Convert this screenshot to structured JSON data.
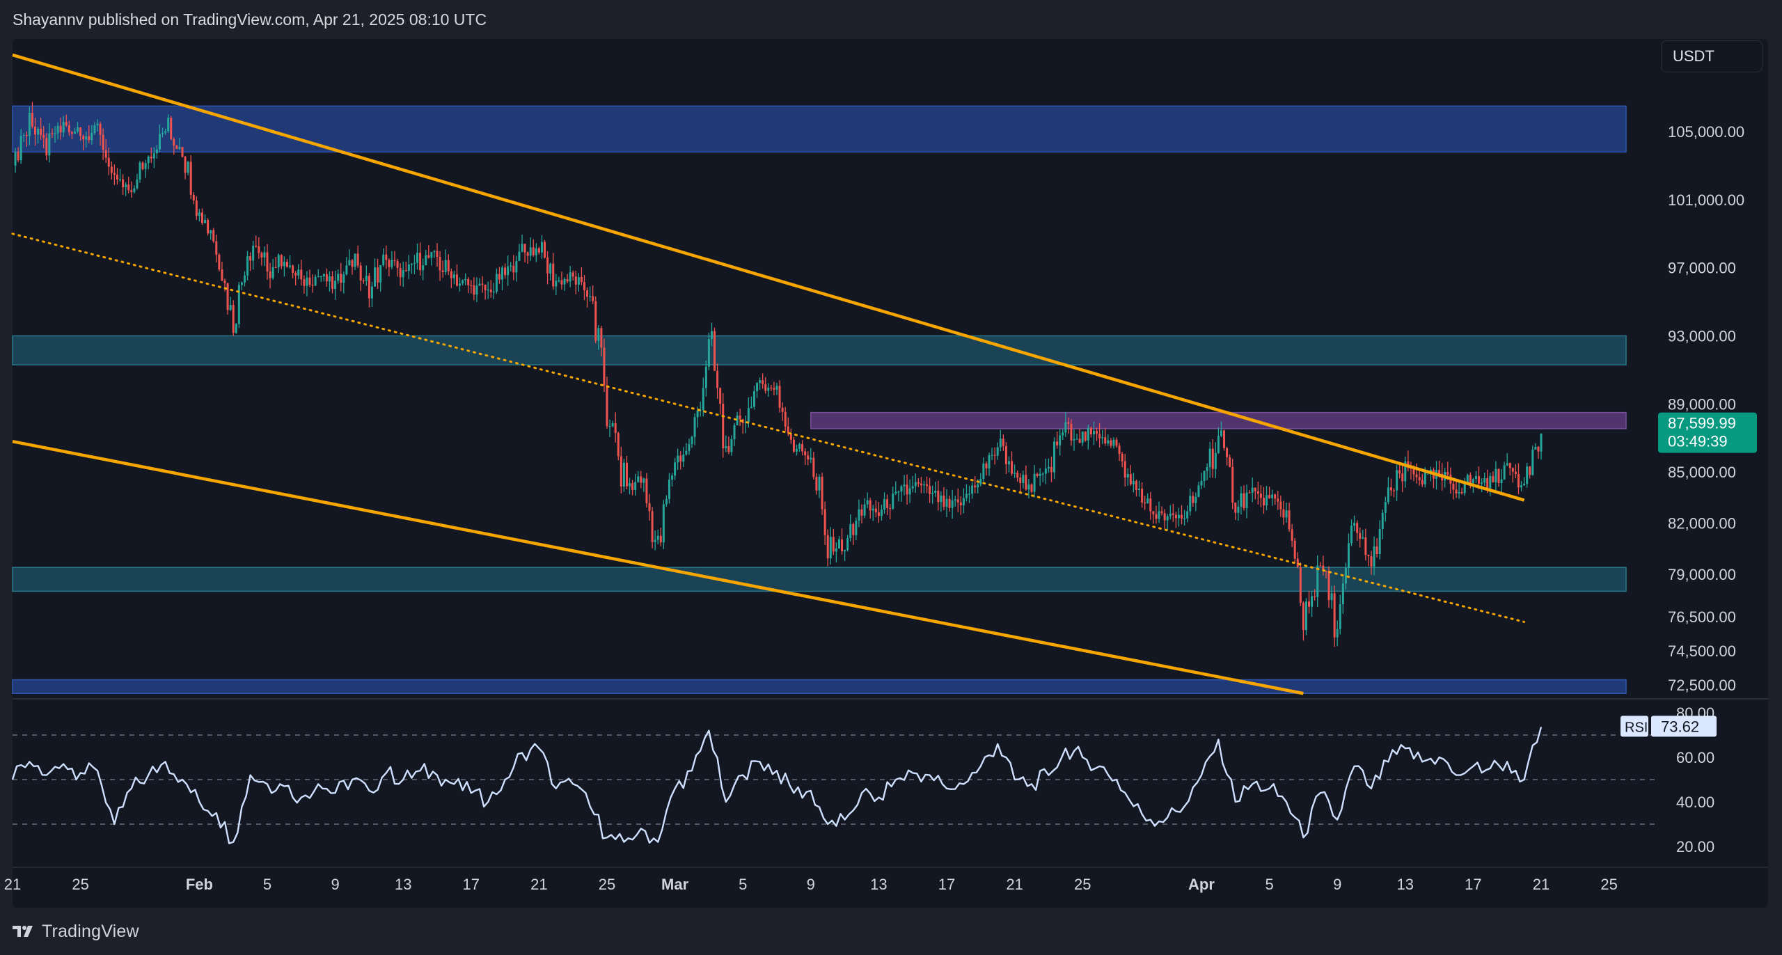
{
  "header": {
    "published_text": "Shayannv published on TradingView.com, Apr 21, 2025 08:10 UTC"
  },
  "currency_label": "USDT",
  "footer": {
    "brand": "TradingView"
  },
  "colors": {
    "background": "#131722",
    "candle_up": "#26a69a",
    "candle_down": "#ef5350",
    "channel": "#f7a600",
    "zone_blue": "#233f86",
    "zone_teal": "#1c4b5e",
    "zone_purple": "#5d3a7a",
    "rsi_line": "#cfe0ff",
    "price_badge": "#089981"
  },
  "chart_data": {
    "type": "candlestick",
    "x_ticks": [
      {
        "label": "21",
        "date": "2025-01-21"
      },
      {
        "label": "25",
        "date": "2025-01-25"
      },
      {
        "label": "Feb",
        "date": "2025-02-01",
        "bold": true
      },
      {
        "label": "5",
        "date": "2025-02-05"
      },
      {
        "label": "9",
        "date": "2025-02-09"
      },
      {
        "label": "13",
        "date": "2025-02-13"
      },
      {
        "label": "17",
        "date": "2025-02-17"
      },
      {
        "label": "21",
        "date": "2025-02-21"
      },
      {
        "label": "25",
        "date": "2025-02-25"
      },
      {
        "label": "Mar",
        "date": "2025-03-01",
        "bold": true
      },
      {
        "label": "5",
        "date": "2025-03-05"
      },
      {
        "label": "9",
        "date": "2025-03-09"
      },
      {
        "label": "13",
        "date": "2025-03-13"
      },
      {
        "label": "17",
        "date": "2025-03-17"
      },
      {
        "label": "21",
        "date": "2025-03-21"
      },
      {
        "label": "25",
        "date": "2025-03-25"
      },
      {
        "label": "Apr",
        "date": "2025-04-01",
        "bold": true
      },
      {
        "label": "5",
        "date": "2025-04-05"
      },
      {
        "label": "9",
        "date": "2025-04-09"
      },
      {
        "label": "13",
        "date": "2025-04-13"
      },
      {
        "label": "17",
        "date": "2025-04-17"
      },
      {
        "label": "21",
        "date": "2025-04-21"
      },
      {
        "label": "25",
        "date": "2025-04-25"
      }
    ],
    "price_axis": {
      "ticks": [
        {
          "label": "105,000.00",
          "value": 105000
        },
        {
          "label": "101,000.00",
          "value": 101000
        },
        {
          "label": "97,000.00",
          "value": 97000
        },
        {
          "label": "93,000.00",
          "value": 93000
        },
        {
          "label": "89,000.00",
          "value": 89000
        },
        {
          "label": "85,000.00",
          "value": 85000
        },
        {
          "label": "82,000.00",
          "value": 82000
        },
        {
          "label": "79,000.00",
          "value": 79000
        },
        {
          "label": "76,500.00",
          "value": 76500
        },
        {
          "label": "74,500.00",
          "value": 74500
        },
        {
          "label": "72,500.00",
          "value": 72500
        }
      ]
    },
    "current_price": {
      "value": 87599.99,
      "label": "87,599.99",
      "countdown": "03:49:39"
    },
    "zones": [
      {
        "name": "upper-supply-zone",
        "color": "blue",
        "from_date": "2025-01-21",
        "to_date": "2025-04-26",
        "price_low": 103800,
        "price_high": 106500
      },
      {
        "name": "resistance-zone-93k",
        "color": "teal",
        "from_date": "2025-01-21",
        "to_date": "2025-04-26",
        "price_low": 91300,
        "price_high": 93000
      },
      {
        "name": "resistance-zone-88k",
        "color": "purple",
        "from_date": "2025-03-09",
        "to_date": "2025-04-26",
        "price_low": 87550,
        "price_high": 88500
      },
      {
        "name": "support-zone-79k",
        "color": "teal",
        "from_date": "2025-01-21",
        "to_date": "2025-04-26",
        "price_low": 78000,
        "price_high": 79400
      },
      {
        "name": "lower-demand-zone",
        "color": "blue",
        "from_date": "2025-01-21",
        "to_date": "2025-04-26",
        "price_low": 72000,
        "price_high": 72800
      }
    ],
    "trendlines": [
      {
        "name": "channel-upper-line",
        "style": "solid",
        "start_date": "2025-01-21",
        "start_price": 109500,
        "end_date": "2025-04-20",
        "end_price": 83350
      },
      {
        "name": "channel-middle-line",
        "style": "dotted",
        "start_date": "2025-01-21",
        "start_price": 99000,
        "end_date": "2025-04-20",
        "end_price": 76200
      },
      {
        "name": "channel-lower-line",
        "style": "solid",
        "start_date": "2025-01-21",
        "start_price": 86800,
        "end_date": "2025-04-07",
        "end_price": 72000
      }
    ],
    "price_path": [
      {
        "date": "2025-01-21",
        "price": 103000
      },
      {
        "date": "2025-01-22",
        "price": 105500
      },
      {
        "date": "2025-01-23",
        "price": 104000
      },
      {
        "date": "2025-01-24",
        "price": 105600
      },
      {
        "date": "2025-01-25",
        "price": 104700
      },
      {
        "date": "2025-01-26",
        "price": 105000
      },
      {
        "date": "2025-01-27",
        "price": 102000
      },
      {
        "date": "2025-01-28",
        "price": 101800
      },
      {
        "date": "2025-01-29",
        "price": 103500
      },
      {
        "date": "2025-01-30",
        "price": 105500
      },
      {
        "date": "2025-01-31",
        "price": 104000
      },
      {
        "date": "2025-02-01",
        "price": 100500
      },
      {
        "date": "2025-02-02",
        "price": 98500
      },
      {
        "date": "2025-02-03",
        "price": 94000
      },
      {
        "date": "2025-02-04",
        "price": 98700
      },
      {
        "date": "2025-02-05",
        "price": 96800
      },
      {
        "date": "2025-02-06",
        "price": 97500
      },
      {
        "date": "2025-02-07",
        "price": 96200
      },
      {
        "date": "2025-02-08",
        "price": 96500
      },
      {
        "date": "2025-02-09",
        "price": 96000
      },
      {
        "date": "2025-02-10",
        "price": 97500
      },
      {
        "date": "2025-02-11",
        "price": 95800
      },
      {
        "date": "2025-02-12",
        "price": 97500
      },
      {
        "date": "2025-02-13",
        "price": 96500
      },
      {
        "date": "2025-02-14",
        "price": 97500
      },
      {
        "date": "2025-02-15",
        "price": 97600
      },
      {
        "date": "2025-02-16",
        "price": 96300
      },
      {
        "date": "2025-02-17",
        "price": 95900
      },
      {
        "date": "2025-02-18",
        "price": 95600
      },
      {
        "date": "2025-02-19",
        "price": 96600
      },
      {
        "date": "2025-02-20",
        "price": 97900
      },
      {
        "date": "2025-02-21",
        "price": 98200
      },
      {
        "date": "2025-02-22",
        "price": 96200
      },
      {
        "date": "2025-02-23",
        "price": 96400
      },
      {
        "date": "2025-02-24",
        "price": 95400
      },
      {
        "date": "2025-02-25",
        "price": 88800
      },
      {
        "date": "2025-02-26",
        "price": 84200
      },
      {
        "date": "2025-02-27",
        "price": 84500
      },
      {
        "date": "2025-02-28",
        "price": 80500
      },
      {
        "date": "2025-03-01",
        "price": 85800
      },
      {
        "date": "2025-03-02",
        "price": 86600
      },
      {
        "date": "2025-03-03",
        "price": 92500
      },
      {
        "date": "2025-03-04",
        "price": 86200
      },
      {
        "date": "2025-03-05",
        "price": 88200
      },
      {
        "date": "2025-03-06",
        "price": 90200
      },
      {
        "date": "2025-03-07",
        "price": 89800
      },
      {
        "date": "2025-03-08",
        "price": 86500
      },
      {
        "date": "2025-03-09",
        "price": 86000
      },
      {
        "date": "2025-03-10",
        "price": 80800
      },
      {
        "date": "2025-03-11",
        "price": 80600
      },
      {
        "date": "2025-03-12",
        "price": 83000
      },
      {
        "date": "2025-03-13",
        "price": 82600
      },
      {
        "date": "2025-03-14",
        "price": 83500
      },
      {
        "date": "2025-03-15",
        "price": 84200
      },
      {
        "date": "2025-03-16",
        "price": 83800
      },
      {
        "date": "2025-03-17",
        "price": 82800
      },
      {
        "date": "2025-03-18",
        "price": 83200
      },
      {
        "date": "2025-03-19",
        "price": 84600
      },
      {
        "date": "2025-03-20",
        "price": 86800
      },
      {
        "date": "2025-03-21",
        "price": 84800
      },
      {
        "date": "2025-03-22",
        "price": 84200
      },
      {
        "date": "2025-03-23",
        "price": 85200
      },
      {
        "date": "2025-03-24",
        "price": 87500
      },
      {
        "date": "2025-03-25",
        "price": 87000
      },
      {
        "date": "2025-03-26",
        "price": 87300
      },
      {
        "date": "2025-03-27",
        "price": 86500
      },
      {
        "date": "2025-03-28",
        "price": 84200
      },
      {
        "date": "2025-03-29",
        "price": 82700
      },
      {
        "date": "2025-03-30",
        "price": 82200
      },
      {
        "date": "2025-03-31",
        "price": 82400
      },
      {
        "date": "2025-04-01",
        "price": 84300
      },
      {
        "date": "2025-04-02",
        "price": 87200
      },
      {
        "date": "2025-04-03",
        "price": 83200
      },
      {
        "date": "2025-04-04",
        "price": 83600
      },
      {
        "date": "2025-04-05",
        "price": 83400
      },
      {
        "date": "2025-04-06",
        "price": 82600
      },
      {
        "date": "2025-04-07",
        "price": 76400
      },
      {
        "date": "2025-04-08",
        "price": 79400
      },
      {
        "date": "2025-04-09",
        "price": 75600
      },
      {
        "date": "2025-04-10",
        "price": 81800
      },
      {
        "date": "2025-04-11",
        "price": 79400
      },
      {
        "date": "2025-04-12",
        "price": 83400
      },
      {
        "date": "2025-04-13",
        "price": 85200
      },
      {
        "date": "2025-04-14",
        "price": 84600
      },
      {
        "date": "2025-04-15",
        "price": 84800
      },
      {
        "date": "2025-04-16",
        "price": 83900
      },
      {
        "date": "2025-04-17",
        "price": 84600
      },
      {
        "date": "2025-04-18",
        "price": 84400
      },
      {
        "date": "2025-04-19",
        "price": 85300
      },
      {
        "date": "2025-04-20",
        "price": 84400
      },
      {
        "date": "2025-04-21",
        "price": 87600
      }
    ],
    "rsi": {
      "label": "RSI",
      "current": "73.62",
      "current_value": 73.62,
      "levels": [
        70,
        50,
        30
      ],
      "ticks": [
        {
          "label": "80.00",
          "value": 80
        },
        {
          "label": "60.00",
          "value": 60
        },
        {
          "label": "40.00",
          "value": 40
        },
        {
          "label": "20.00",
          "value": 20
        }
      ],
      "path": [
        {
          "date": "2025-01-21",
          "value": 50
        },
        {
          "date": "2025-01-22",
          "value": 58
        },
        {
          "date": "2025-01-23",
          "value": 52
        },
        {
          "date": "2025-01-24",
          "value": 57
        },
        {
          "date": "2025-01-25",
          "value": 53
        },
        {
          "date": "2025-01-26",
          "value": 54
        },
        {
          "date": "2025-01-27",
          "value": 30
        },
        {
          "date": "2025-01-28",
          "value": 46
        },
        {
          "date": "2025-01-29",
          "value": 52
        },
        {
          "date": "2025-01-30",
          "value": 58
        },
        {
          "date": "2025-01-31",
          "value": 50
        },
        {
          "date": "2025-02-01",
          "value": 40
        },
        {
          "date": "2025-02-02",
          "value": 35
        },
        {
          "date": "2025-02-03",
          "value": 22
        },
        {
          "date": "2025-02-04",
          "value": 52
        },
        {
          "date": "2025-02-05",
          "value": 48
        },
        {
          "date": "2025-02-06",
          "value": 47
        },
        {
          "date": "2025-02-07",
          "value": 42
        },
        {
          "date": "2025-02-08",
          "value": 48
        },
        {
          "date": "2025-02-09",
          "value": 44
        },
        {
          "date": "2025-02-10",
          "value": 50
        },
        {
          "date": "2025-02-11",
          "value": 45
        },
        {
          "date": "2025-02-12",
          "value": 53
        },
        {
          "date": "2025-02-13",
          "value": 50
        },
        {
          "date": "2025-02-14",
          "value": 54
        },
        {
          "date": "2025-02-15",
          "value": 52
        },
        {
          "date": "2025-02-16",
          "value": 48
        },
        {
          "date": "2025-02-17",
          "value": 44
        },
        {
          "date": "2025-02-18",
          "value": 40
        },
        {
          "date": "2025-02-19",
          "value": 50
        },
        {
          "date": "2025-02-20",
          "value": 62
        },
        {
          "date": "2025-02-21",
          "value": 64
        },
        {
          "date": "2025-02-22",
          "value": 46
        },
        {
          "date": "2025-02-23",
          "value": 48
        },
        {
          "date": "2025-02-24",
          "value": 38
        },
        {
          "date": "2025-02-25",
          "value": 24
        },
        {
          "date": "2025-02-26",
          "value": 22
        },
        {
          "date": "2025-02-27",
          "value": 28
        },
        {
          "date": "2025-02-28",
          "value": 22
        },
        {
          "date": "2025-03-01",
          "value": 46
        },
        {
          "date": "2025-03-02",
          "value": 54
        },
        {
          "date": "2025-03-03",
          "value": 72
        },
        {
          "date": "2025-03-04",
          "value": 40
        },
        {
          "date": "2025-03-05",
          "value": 52
        },
        {
          "date": "2025-03-06",
          "value": 58
        },
        {
          "date": "2025-03-07",
          "value": 54
        },
        {
          "date": "2025-03-08",
          "value": 44
        },
        {
          "date": "2025-03-09",
          "value": 45
        },
        {
          "date": "2025-03-10",
          "value": 30
        },
        {
          "date": "2025-03-11",
          "value": 32
        },
        {
          "date": "2025-03-12",
          "value": 44
        },
        {
          "date": "2025-03-13",
          "value": 42
        },
        {
          "date": "2025-03-14",
          "value": 50
        },
        {
          "date": "2025-03-15",
          "value": 53
        },
        {
          "date": "2025-03-16",
          "value": 52
        },
        {
          "date": "2025-03-17",
          "value": 46
        },
        {
          "date": "2025-03-18",
          "value": 48
        },
        {
          "date": "2025-03-19",
          "value": 56
        },
        {
          "date": "2025-03-20",
          "value": 66
        },
        {
          "date": "2025-03-21",
          "value": 50
        },
        {
          "date": "2025-03-22",
          "value": 48
        },
        {
          "date": "2025-03-23",
          "value": 52
        },
        {
          "date": "2025-03-24",
          "value": 64
        },
        {
          "date": "2025-03-25",
          "value": 60
        },
        {
          "date": "2025-03-26",
          "value": 56
        },
        {
          "date": "2025-03-27",
          "value": 50
        },
        {
          "date": "2025-03-28",
          "value": 38
        },
        {
          "date": "2025-03-29",
          "value": 32
        },
        {
          "date": "2025-03-30",
          "value": 33
        },
        {
          "date": "2025-03-31",
          "value": 38
        },
        {
          "date": "2025-04-01",
          "value": 52
        },
        {
          "date": "2025-04-02",
          "value": 68
        },
        {
          "date": "2025-04-03",
          "value": 40
        },
        {
          "date": "2025-04-04",
          "value": 48
        },
        {
          "date": "2025-04-05",
          "value": 46
        },
        {
          "date": "2025-04-06",
          "value": 40
        },
        {
          "date": "2025-04-07",
          "value": 24
        },
        {
          "date": "2025-04-08",
          "value": 44
        },
        {
          "date": "2025-04-09",
          "value": 32
        },
        {
          "date": "2025-04-10",
          "value": 56
        },
        {
          "date": "2025-04-11",
          "value": 46
        },
        {
          "date": "2025-04-12",
          "value": 58
        },
        {
          "date": "2025-04-13",
          "value": 64
        },
        {
          "date": "2025-04-14",
          "value": 58
        },
        {
          "date": "2025-04-15",
          "value": 60
        },
        {
          "date": "2025-04-16",
          "value": 52
        },
        {
          "date": "2025-04-17",
          "value": 56
        },
        {
          "date": "2025-04-18",
          "value": 55
        },
        {
          "date": "2025-04-19",
          "value": 58
        },
        {
          "date": "2025-04-20",
          "value": 50
        },
        {
          "date": "2025-04-21",
          "value": 73.62
        }
      ]
    }
  }
}
